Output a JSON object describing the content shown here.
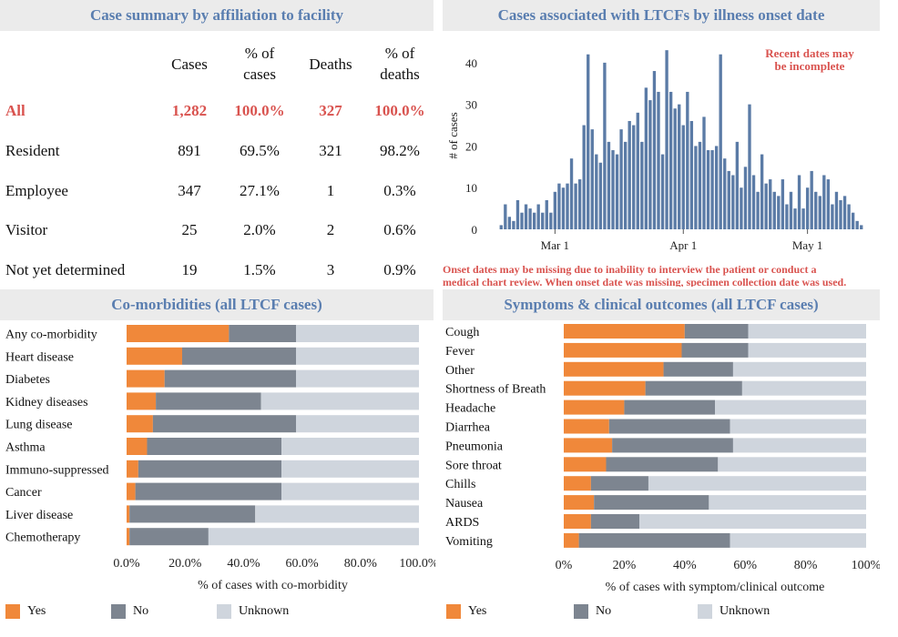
{
  "summary": {
    "title": "Case summary by affiliation to facility",
    "headers": {
      "cases": "Cases",
      "pct_cases_1": "% of",
      "pct_cases_2": "cases",
      "deaths": "Deaths",
      "pct_deaths_1": "% of",
      "pct_deaths_2": "deaths"
    },
    "rows": [
      {
        "label": "All",
        "cases": "1,282",
        "pct_cases": "100.0%",
        "deaths": "327",
        "pct_deaths": "100.0%"
      },
      {
        "label": "Resident",
        "cases": "891",
        "pct_cases": "69.5%",
        "deaths": "321",
        "pct_deaths": "98.2%"
      },
      {
        "label": "Employee",
        "cases": "347",
        "pct_cases": "27.1%",
        "deaths": "1",
        "pct_deaths": "0.3%"
      },
      {
        "label": "Visitor",
        "cases": "25",
        "pct_cases": "2.0%",
        "deaths": "2",
        "pct_deaths": "0.6%"
      },
      {
        "label": "Not yet determined",
        "cases": "19",
        "pct_cases": "1.5%",
        "deaths": "3",
        "pct_deaths": "0.9%"
      }
    ]
  },
  "colors": {
    "yes": "#f0883a",
    "no": "#7d8590",
    "unknown": "#cfd5dd",
    "accent": "#5a7eb0",
    "highlight": "#d9534f",
    "epi_bar": "#5b7ba6"
  },
  "chart_data": [
    {
      "type": "bar",
      "title": "Cases associated with LTCFs by illness onset date",
      "ylabel": "# of cases",
      "ylim": [
        0,
        45
      ],
      "yticks": [
        0,
        10,
        20,
        30,
        40
      ],
      "xtick_labels": [
        "Mar 1",
        "Apr 1",
        "May 1"
      ],
      "xtick_positions": [
        13,
        44,
        74
      ],
      "annotation_1": "Recent dates may",
      "annotation_2": "be incomplete",
      "footnote_1": "Onset dates may be missing due to inability to interview the patient or conduct a",
      "footnote_2": "medical chart review. When onset date was missing, specimen collection date was used.",
      "values": [
        1,
        6,
        3,
        2,
        7,
        4,
        6,
        5,
        4,
        6,
        4,
        7,
        4,
        9,
        11,
        10,
        11,
        17,
        11,
        12,
        25,
        42,
        24,
        18,
        16,
        40,
        21,
        19,
        18,
        24,
        21,
        26,
        25,
        28,
        21,
        34,
        31,
        38,
        33,
        18,
        43,
        33,
        29,
        30,
        25,
        33,
        26,
        20,
        21,
        27,
        19,
        19,
        20,
        42,
        17,
        14,
        13,
        21,
        10,
        15,
        30,
        13,
        9,
        18,
        11,
        12,
        9,
        8,
        12,
        6,
        9,
        5,
        13,
        5,
        10,
        14,
        9,
        8,
        13,
        12,
        6,
        9,
        7,
        8,
        6,
        4,
        2,
        1
      ]
    },
    {
      "type": "bar",
      "stacked": "horizontal",
      "title": "Co-morbidities (all LTCF cases)",
      "xlabel": "% of cases with co-morbidity",
      "xticks": [
        "0.0%",
        "20.0%",
        "40.0%",
        "60.0%",
        "80.0%",
        "100.0%"
      ],
      "categories": [
        "Any co-morbidity",
        "Heart disease",
        "Diabetes",
        "Kidney diseases",
        "Lung disease",
        "Asthma",
        "Immuno-suppressed",
        "Cancer",
        "Liver disease",
        "Chemotherapy"
      ],
      "series": [
        {
          "name": "Yes",
          "values": [
            35,
            19,
            13,
            10,
            9,
            7,
            4,
            3,
            1,
            1
          ]
        },
        {
          "name": "No",
          "values": [
            23,
            39,
            45,
            36,
            49,
            46,
            49,
            50,
            43,
            27
          ]
        },
        {
          "name": "Unknown",
          "values": [
            42,
            42,
            42,
            54,
            42,
            47,
            47,
            47,
            56,
            72
          ]
        }
      ]
    },
    {
      "type": "bar",
      "stacked": "horizontal",
      "title": "Symptoms & clinical outcomes (all LTCF cases)",
      "xlabel": "% of cases with symptom/clinical outcome",
      "xticks": [
        "0%",
        "20%",
        "40%",
        "60%",
        "80%",
        "100%"
      ],
      "categories": [
        "Cough",
        "Fever",
        "Other",
        "Shortness of Breath",
        "Headache",
        "Diarrhea",
        "Pneumonia",
        "Sore throat",
        "Chills",
        "Nausea",
        "ARDS",
        "Vomiting"
      ],
      "series": [
        {
          "name": "Yes",
          "values": [
            40,
            39,
            33,
            27,
            20,
            15,
            16,
            14,
            9,
            10,
            9,
            5
          ]
        },
        {
          "name": "No",
          "values": [
            21,
            22,
            23,
            32,
            30,
            40,
            40,
            37,
            19,
            38,
            16,
            50
          ]
        },
        {
          "name": "Unknown",
          "values": [
            39,
            39,
            44,
            41,
            50,
            45,
            44,
            49,
            72,
            52,
            75,
            45
          ]
        }
      ]
    }
  ],
  "legend": {
    "yes": "Yes",
    "no": "No",
    "unknown": "Unknown"
  }
}
